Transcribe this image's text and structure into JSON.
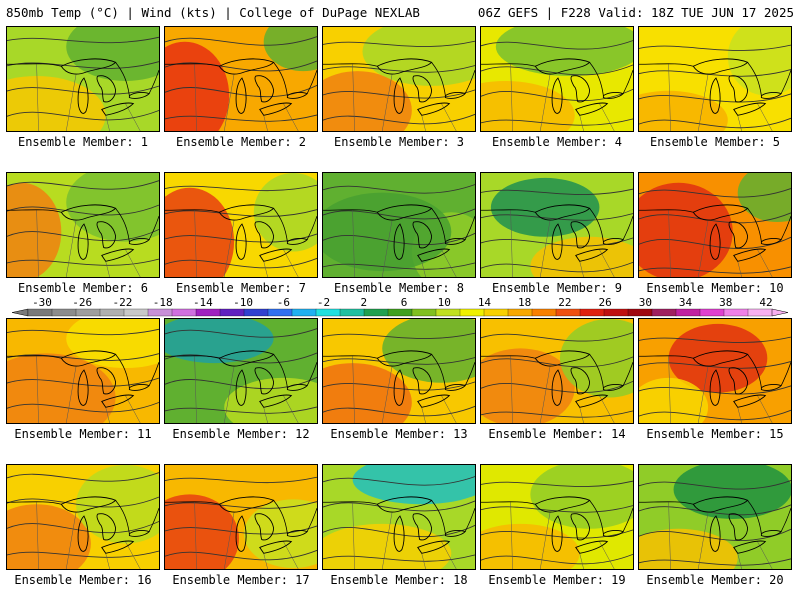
{
  "header": {
    "left_title": "850mb Temp (°C) | Wind (kts) | College of DuPage NEXLAB",
    "right_title": "06Z GEFS | F228 Valid: 18Z TUE JUN 17 2025"
  },
  "colorbar": {
    "labels": [
      "-30",
      "-26",
      "-22",
      "-18",
      "-14",
      "-10",
      "-6",
      "-2",
      "2",
      "6",
      "10",
      "14",
      "18",
      "22",
      "26",
      "30",
      "34",
      "38",
      "42"
    ],
    "colors": [
      "#7a7a7a",
      "#8c8c8c",
      "#9e9e9e",
      "#b0b0b0",
      "#c8c8c8",
      "#c890d8",
      "#d070e0",
      "#a020c0",
      "#6020c0",
      "#3040d0",
      "#3070f0",
      "#20b0f0",
      "#20e0e0",
      "#20c0a0",
      "#20a050",
      "#40a020",
      "#80c020",
      "#c0e020",
      "#f0f000",
      "#f8d000",
      "#f8a800",
      "#f88000",
      "#f05010",
      "#e02010",
      "#c01010",
      "#a00810",
      "#a02060",
      "#c020a0",
      "#e040d0",
      "#f080e8",
      "#f8b0f0"
    ]
  },
  "panels": [
    {
      "label": "Ensemble Member: 1",
      "base": "#a8d828",
      "blobs": [
        {
          "c": "#f8c800"
        },
        {
          "c": "#60b030"
        }
      ]
    },
    {
      "label": "Ensemble Member: 2",
      "base": "#f8a800",
      "blobs": [
        {
          "c": "#e83010"
        },
        {
          "c": "#60b030"
        }
      ]
    },
    {
      "label": "Ensemble Member: 3",
      "base": "#f8d000",
      "blobs": [
        {
          "c": "#f08010"
        },
        {
          "c": "#a8d828"
        }
      ]
    },
    {
      "label": "Ensemble Member: 4",
      "base": "#e8e800",
      "blobs": [
        {
          "c": "#f8b800"
        },
        {
          "c": "#78c030"
        }
      ]
    },
    {
      "label": "Ensemble Member: 5",
      "base": "#f8e000",
      "blobs": [
        {
          "c": "#f8b000"
        },
        {
          "c": "#c8e020"
        }
      ]
    },
    {
      "label": "Ensemble Member: 6",
      "base": "#b8dc20",
      "blobs": [
        {
          "c": "#f08010"
        },
        {
          "c": "#78c030"
        }
      ]
    },
    {
      "label": "Ensemble Member: 7",
      "base": "#f8d800",
      "blobs": [
        {
          "c": "#e84010"
        },
        {
          "c": "#a8d828"
        }
      ]
    },
    {
      "label": "Ensemble Member: 8",
      "base": "#60b030",
      "blobs": [
        {
          "c": "#90cc28"
        },
        {
          "c": "#48a030"
        }
      ]
    },
    {
      "label": "Ensemble Member: 9",
      "base": "#a8d828",
      "blobs": [
        {
          "c": "#f8c000"
        },
        {
          "c": "#209050"
        }
      ]
    },
    {
      "label": "Ensemble Member: 10",
      "base": "#f89000",
      "blobs": [
        {
          "c": "#e03010"
        },
        {
          "c": "#60b030"
        }
      ]
    },
    {
      "label": "Ensemble Member: 11",
      "base": "#f8b800",
      "blobs": [
        {
          "c": "#f08010"
        },
        {
          "c": "#f8e000"
        }
      ]
    },
    {
      "label": "Ensemble Member: 12",
      "base": "#60b030",
      "blobs": [
        {
          "c": "#b8dc20"
        },
        {
          "c": "#20a0a0"
        }
      ]
    },
    {
      "label": "Ensemble Member: 13",
      "base": "#f8c800",
      "blobs": [
        {
          "c": "#f07010"
        },
        {
          "c": "#60b030"
        }
      ]
    },
    {
      "label": "Ensemble Member: 14",
      "base": "#f8c000",
      "blobs": [
        {
          "c": "#f08010"
        },
        {
          "c": "#90cc28"
        }
      ]
    },
    {
      "label": "Ensemble Member: 15",
      "base": "#f8a000",
      "blobs": [
        {
          "c": "#e03010"
        },
        {
          "c": "#f8d800"
        }
      ]
    },
    {
      "label": "Ensemble Member: 16",
      "base": "#f8d000",
      "blobs": [
        {
          "c": "#f08010"
        },
        {
          "c": "#b8dc20"
        }
      ]
    },
    {
      "label": "Ensemble Member: 17",
      "base": "#f8b800",
      "blobs": [
        {
          "c": "#e84010"
        },
        {
          "c": "#c8e020"
        }
      ]
    },
    {
      "label": "Ensemble Member: 18",
      "base": "#a8d828",
      "blobs": [
        {
          "c": "#f8d000"
        },
        {
          "c": "#20c0c0"
        }
      ]
    },
    {
      "label": "Ensemble Member: 19",
      "base": "#e0e800",
      "blobs": [
        {
          "c": "#f8b800"
        },
        {
          "c": "#90cc28"
        }
      ]
    },
    {
      "label": "Ensemble Member: 20",
      "base": "#90cc28",
      "blobs": [
        {
          "c": "#f8c000"
        },
        {
          "c": "#209040"
        }
      ]
    }
  ]
}
